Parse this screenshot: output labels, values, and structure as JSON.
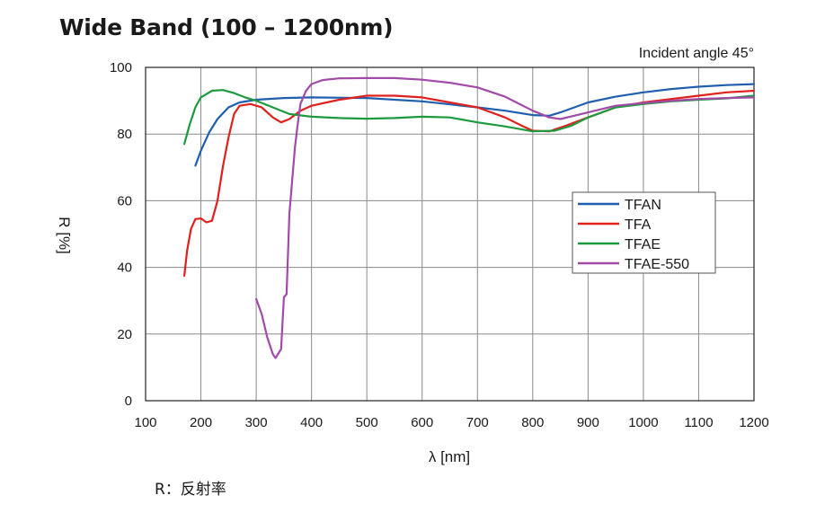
{
  "title": "Wide Band (100 – 1200nm)",
  "annotation": "Incident angle 45°",
  "footnote": "R：反射率",
  "colors": {
    "TFAN": "#1f5fae",
    "TFA": "#e0201c",
    "TFAE": "#1e9a3e",
    "TFAE-550": "#a24aa8"
  },
  "chart_data": {
    "type": "line",
    "title": "Wide Band (100 – 1200nm)",
    "xlabel": "λ [nm]",
    "ylabel": "R [%]",
    "xlim": [
      100,
      1200
    ],
    "ylim": [
      0,
      100
    ],
    "xticks": [
      100,
      200,
      300,
      400,
      500,
      600,
      700,
      800,
      900,
      1000,
      1100,
      1200
    ],
    "yticks": [
      0,
      20,
      40,
      60,
      80,
      100
    ],
    "grid": true,
    "legend_position": "right-middle",
    "series": [
      {
        "name": "TFAN",
        "points": [
          [
            190,
            70.5
          ],
          [
            200,
            75
          ],
          [
            215,
            80.5
          ],
          [
            230,
            84.5
          ],
          [
            250,
            88
          ],
          [
            270,
            89.5
          ],
          [
            300,
            90.3
          ],
          [
            350,
            90.8
          ],
          [
            400,
            91
          ],
          [
            500,
            90.8
          ],
          [
            600,
            89.8
          ],
          [
            700,
            88
          ],
          [
            750,
            87
          ],
          [
            800,
            85.7
          ],
          [
            830,
            85.5
          ],
          [
            850,
            86.5
          ],
          [
            900,
            89.5
          ],
          [
            950,
            91.2
          ],
          [
            1000,
            92.5
          ],
          [
            1050,
            93.5
          ],
          [
            1100,
            94.2
          ],
          [
            1150,
            94.7
          ],
          [
            1200,
            95
          ]
        ]
      },
      {
        "name": "TFA",
        "points": [
          [
            170,
            37.5
          ],
          [
            175,
            45
          ],
          [
            182,
            51.5
          ],
          [
            190,
            54.5
          ],
          [
            200,
            54.7
          ],
          [
            210,
            53.5
          ],
          [
            220,
            54
          ],
          [
            230,
            60
          ],
          [
            240,
            70.5
          ],
          [
            250,
            79
          ],
          [
            260,
            86
          ],
          [
            270,
            88.5
          ],
          [
            290,
            89
          ],
          [
            310,
            88
          ],
          [
            330,
            85
          ],
          [
            345,
            83.5
          ],
          [
            360,
            84.5
          ],
          [
            380,
            87
          ],
          [
            400,
            88.5
          ],
          [
            450,
            90.3
          ],
          [
            500,
            91.5
          ],
          [
            550,
            91.5
          ],
          [
            600,
            91
          ],
          [
            650,
            89.5
          ],
          [
            700,
            88
          ],
          [
            750,
            85
          ],
          [
            780,
            82.5
          ],
          [
            800,
            81
          ],
          [
            830,
            80.8
          ],
          [
            860,
            82.5
          ],
          [
            900,
            85
          ],
          [
            950,
            88
          ],
          [
            1000,
            89.5
          ],
          [
            1050,
            90.5
          ],
          [
            1100,
            91.5
          ],
          [
            1150,
            92.5
          ],
          [
            1200,
            93
          ]
        ]
      },
      {
        "name": "TFAE",
        "points": [
          [
            170,
            77
          ],
          [
            180,
            83
          ],
          [
            190,
            88
          ],
          [
            200,
            91
          ],
          [
            220,
            93
          ],
          [
            240,
            93.2
          ],
          [
            260,
            92.3
          ],
          [
            280,
            91
          ],
          [
            300,
            90
          ],
          [
            330,
            88
          ],
          [
            360,
            86
          ],
          [
            400,
            85.2
          ],
          [
            450,
            84.8
          ],
          [
            500,
            84.6
          ],
          [
            550,
            84.8
          ],
          [
            600,
            85.2
          ],
          [
            650,
            85
          ],
          [
            700,
            83.5
          ],
          [
            750,
            82.3
          ],
          [
            800,
            80.8
          ],
          [
            840,
            81
          ],
          [
            870,
            82.5
          ],
          [
            900,
            85
          ],
          [
            950,
            88
          ],
          [
            1000,
            89
          ],
          [
            1050,
            89.8
          ],
          [
            1100,
            90.3
          ],
          [
            1150,
            90.7
          ],
          [
            1200,
            91.5
          ]
        ]
      },
      {
        "name": "TFAE-550",
        "points": [
          [
            300,
            30.5
          ],
          [
            310,
            26
          ],
          [
            320,
            19
          ],
          [
            330,
            14
          ],
          [
            335,
            12.8
          ],
          [
            345,
            15.5
          ],
          [
            350,
            31
          ],
          [
            355,
            32
          ],
          [
            360,
            56
          ],
          [
            365,
            66
          ],
          [
            370,
            76
          ],
          [
            375,
            83
          ],
          [
            380,
            89
          ],
          [
            390,
            93
          ],
          [
            400,
            95
          ],
          [
            420,
            96.2
          ],
          [
            450,
            96.7
          ],
          [
            500,
            96.8
          ],
          [
            550,
            96.8
          ],
          [
            600,
            96.3
          ],
          [
            650,
            95.4
          ],
          [
            700,
            94
          ],
          [
            750,
            91.2
          ],
          [
            800,
            87
          ],
          [
            830,
            85
          ],
          [
            850,
            84.5
          ],
          [
            900,
            86.5
          ],
          [
            950,
            88.5
          ],
          [
            1000,
            89.3
          ],
          [
            1050,
            90
          ],
          [
            1100,
            90.5
          ],
          [
            1150,
            90.8
          ],
          [
            1200,
            91
          ]
        ]
      }
    ]
  }
}
